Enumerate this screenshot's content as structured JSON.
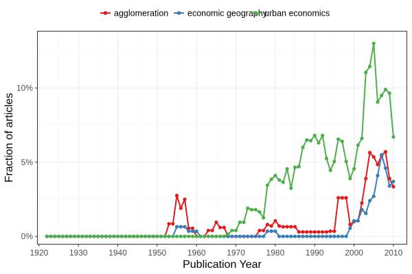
{
  "chart_data": {
    "type": "line",
    "xlabel": "Publication Year",
    "ylabel": "Fraction of articles",
    "xlim": [
      1919.5,
      2013.5
    ],
    "ylim": [
      -0.0055,
      0.1385
    ],
    "x_ticks": [
      1920,
      1930,
      1940,
      1950,
      1960,
      1970,
      1980,
      1990,
      2000,
      2010
    ],
    "x_tick_labels": [
      "1920",
      "1930",
      "1940",
      "1950",
      "1960",
      "1970",
      "1980",
      "1990",
      "2000",
      "2010"
    ],
    "y_ticks": [
      0,
      0.05,
      0.1
    ],
    "y_tick_labels": [
      "0%",
      "5%",
      "10%"
    ],
    "grid": true,
    "legend_position": "top",
    "series": [
      {
        "name": "agglomeration",
        "color": "#e41a1c",
        "x": [
          1922,
          1923,
          1924,
          1925,
          1926,
          1927,
          1928,
          1929,
          1930,
          1931,
          1932,
          1933,
          1934,
          1935,
          1936,
          1937,
          1938,
          1939,
          1940,
          1941,
          1942,
          1943,
          1944,
          1945,
          1946,
          1947,
          1948,
          1949,
          1950,
          1951,
          1952,
          1953,
          1954,
          1955,
          1956,
          1957,
          1958,
          1959,
          1960,
          1961,
          1962,
          1963,
          1964,
          1965,
          1966,
          1967,
          1968,
          1969,
          1970,
          1971,
          1972,
          1973,
          1974,
          1975,
          1976,
          1977,
          1978,
          1979,
          1980,
          1981,
          1982,
          1983,
          1984,
          1985,
          1986,
          1987,
          1988,
          1989,
          1990,
          1991,
          1992,
          1993,
          1994,
          1995,
          1996,
          1997,
          1998,
          1999,
          2000,
          2001,
          2002,
          2003,
          2004,
          2005,
          2006,
          2007,
          2008,
          2009,
          2010
        ],
        "y": [
          0,
          0,
          0,
          0,
          0,
          0,
          0,
          0,
          0,
          0,
          0,
          0,
          0,
          0,
          0,
          0,
          0,
          0,
          0,
          0,
          0,
          0,
          0,
          0,
          0,
          0,
          0,
          0,
          0,
          0,
          0,
          0.0085,
          0.0085,
          0.0275,
          0.019,
          0.025,
          0.0055,
          0.0055,
          0,
          0,
          0,
          0.004,
          0.004,
          0.0095,
          0.006,
          0.006,
          0,
          0,
          0,
          0,
          0,
          0,
          0,
          0,
          0.004,
          0.004,
          0.008,
          0.007,
          0.0105,
          0.007,
          0.0065,
          0.0065,
          0.0065,
          0.0065,
          0.003,
          0.003,
          0.003,
          0.003,
          0.003,
          0.003,
          0.003,
          0.003,
          0.0035,
          0.0035,
          0.026,
          0.026,
          0.026,
          0.008,
          0.01,
          0.0105,
          0.0225,
          0.039,
          0.0565,
          0.0535,
          0.0485,
          0.0545,
          0.057,
          0.039,
          0.0335
        ]
      },
      {
        "name": "economic geography",
        "color": "#377eb8",
        "x": [
          1922,
          1923,
          1924,
          1925,
          1926,
          1927,
          1928,
          1929,
          1930,
          1931,
          1932,
          1933,
          1934,
          1935,
          1936,
          1937,
          1938,
          1939,
          1940,
          1941,
          1942,
          1943,
          1944,
          1945,
          1946,
          1947,
          1948,
          1949,
          1950,
          1951,
          1952,
          1953,
          1954,
          1955,
          1956,
          1957,
          1958,
          1959,
          1960,
          1961,
          1962,
          1963,
          1964,
          1965,
          1966,
          1967,
          1968,
          1969,
          1970,
          1971,
          1972,
          1973,
          1974,
          1975,
          1976,
          1977,
          1978,
          1979,
          1980,
          1981,
          1982,
          1983,
          1984,
          1985,
          1986,
          1987,
          1988,
          1989,
          1990,
          1991,
          1992,
          1993,
          1994,
          1995,
          1996,
          1997,
          1998,
          1999,
          2000,
          2001,
          2002,
          2003,
          2004,
          2005,
          2006,
          2007,
          2008,
          2009,
          2010
        ],
        "y": [
          0,
          0,
          0,
          0,
          0,
          0,
          0,
          0,
          0,
          0,
          0,
          0,
          0,
          0,
          0,
          0,
          0,
          0,
          0,
          0,
          0,
          0,
          0,
          0,
          0,
          0,
          0,
          0,
          0,
          0,
          0,
          0,
          0,
          0.0065,
          0.0065,
          0.0065,
          0.0035,
          0.0035,
          0.0035,
          0,
          0,
          0,
          0,
          0,
          0,
          0,
          0,
          0,
          0,
          0,
          0,
          0,
          0,
          0,
          0,
          0,
          0.0035,
          0.0035,
          0.0035,
          0,
          0,
          0,
          0,
          0,
          0,
          0,
          0,
          0,
          0,
          0,
          0,
          0,
          0,
          0,
          0,
          0,
          0,
          0.0055,
          0.0105,
          0.0105,
          0.018,
          0.0155,
          0.024,
          0.027,
          0.041,
          0.055,
          0.046,
          0.034,
          0.037
        ]
      },
      {
        "name": "urban economics",
        "color": "#4daf4a",
        "x": [
          1922,
          1923,
          1924,
          1925,
          1926,
          1927,
          1928,
          1929,
          1930,
          1931,
          1932,
          1933,
          1934,
          1935,
          1936,
          1937,
          1938,
          1939,
          1940,
          1941,
          1942,
          1943,
          1944,
          1945,
          1946,
          1947,
          1948,
          1949,
          1950,
          1951,
          1952,
          1953,
          1954,
          1955,
          1956,
          1957,
          1958,
          1959,
          1960,
          1961,
          1962,
          1963,
          1964,
          1965,
          1966,
          1967,
          1968,
          1969,
          1970,
          1971,
          1972,
          1973,
          1974,
          1975,
          1976,
          1977,
          1978,
          1979,
          1980,
          1981,
          1982,
          1983,
          1984,
          1985,
          1986,
          1987,
          1988,
          1989,
          1990,
          1991,
          1992,
          1993,
          1994,
          1995,
          1996,
          1997,
          1998,
          1999,
          2000,
          2001,
          2002,
          2003,
          2004,
          2005,
          2006,
          2007,
          2008,
          2009,
          2010
        ],
        "y": [
          0,
          0,
          0,
          0,
          0,
          0,
          0,
          0,
          0,
          0,
          0,
          0,
          0,
          0,
          0,
          0,
          0,
          0,
          0,
          0,
          0,
          0,
          0,
          0,
          0,
          0,
          0,
          0,
          0,
          0,
          0,
          0,
          0,
          0,
          0,
          0,
          0,
          0,
          0,
          0,
          0,
          0,
          0,
          0,
          0,
          0,
          0.0015,
          0.004,
          0.004,
          0.0095,
          0.0095,
          0.019,
          0.018,
          0.018,
          0.0165,
          0.0125,
          0.0345,
          0.0385,
          0.041,
          0.038,
          0.0365,
          0.0455,
          0.0325,
          0.0465,
          0.047,
          0.06,
          0.065,
          0.0645,
          0.068,
          0.063,
          0.068,
          0.0525,
          0.0445,
          0.0505,
          0.0655,
          0.064,
          0.0505,
          0.039,
          0.0455,
          0.0615,
          0.066,
          0.1105,
          0.1145,
          0.13,
          0.0905,
          0.095,
          0.099,
          0.0965,
          0.067
        ]
      }
    ]
  }
}
